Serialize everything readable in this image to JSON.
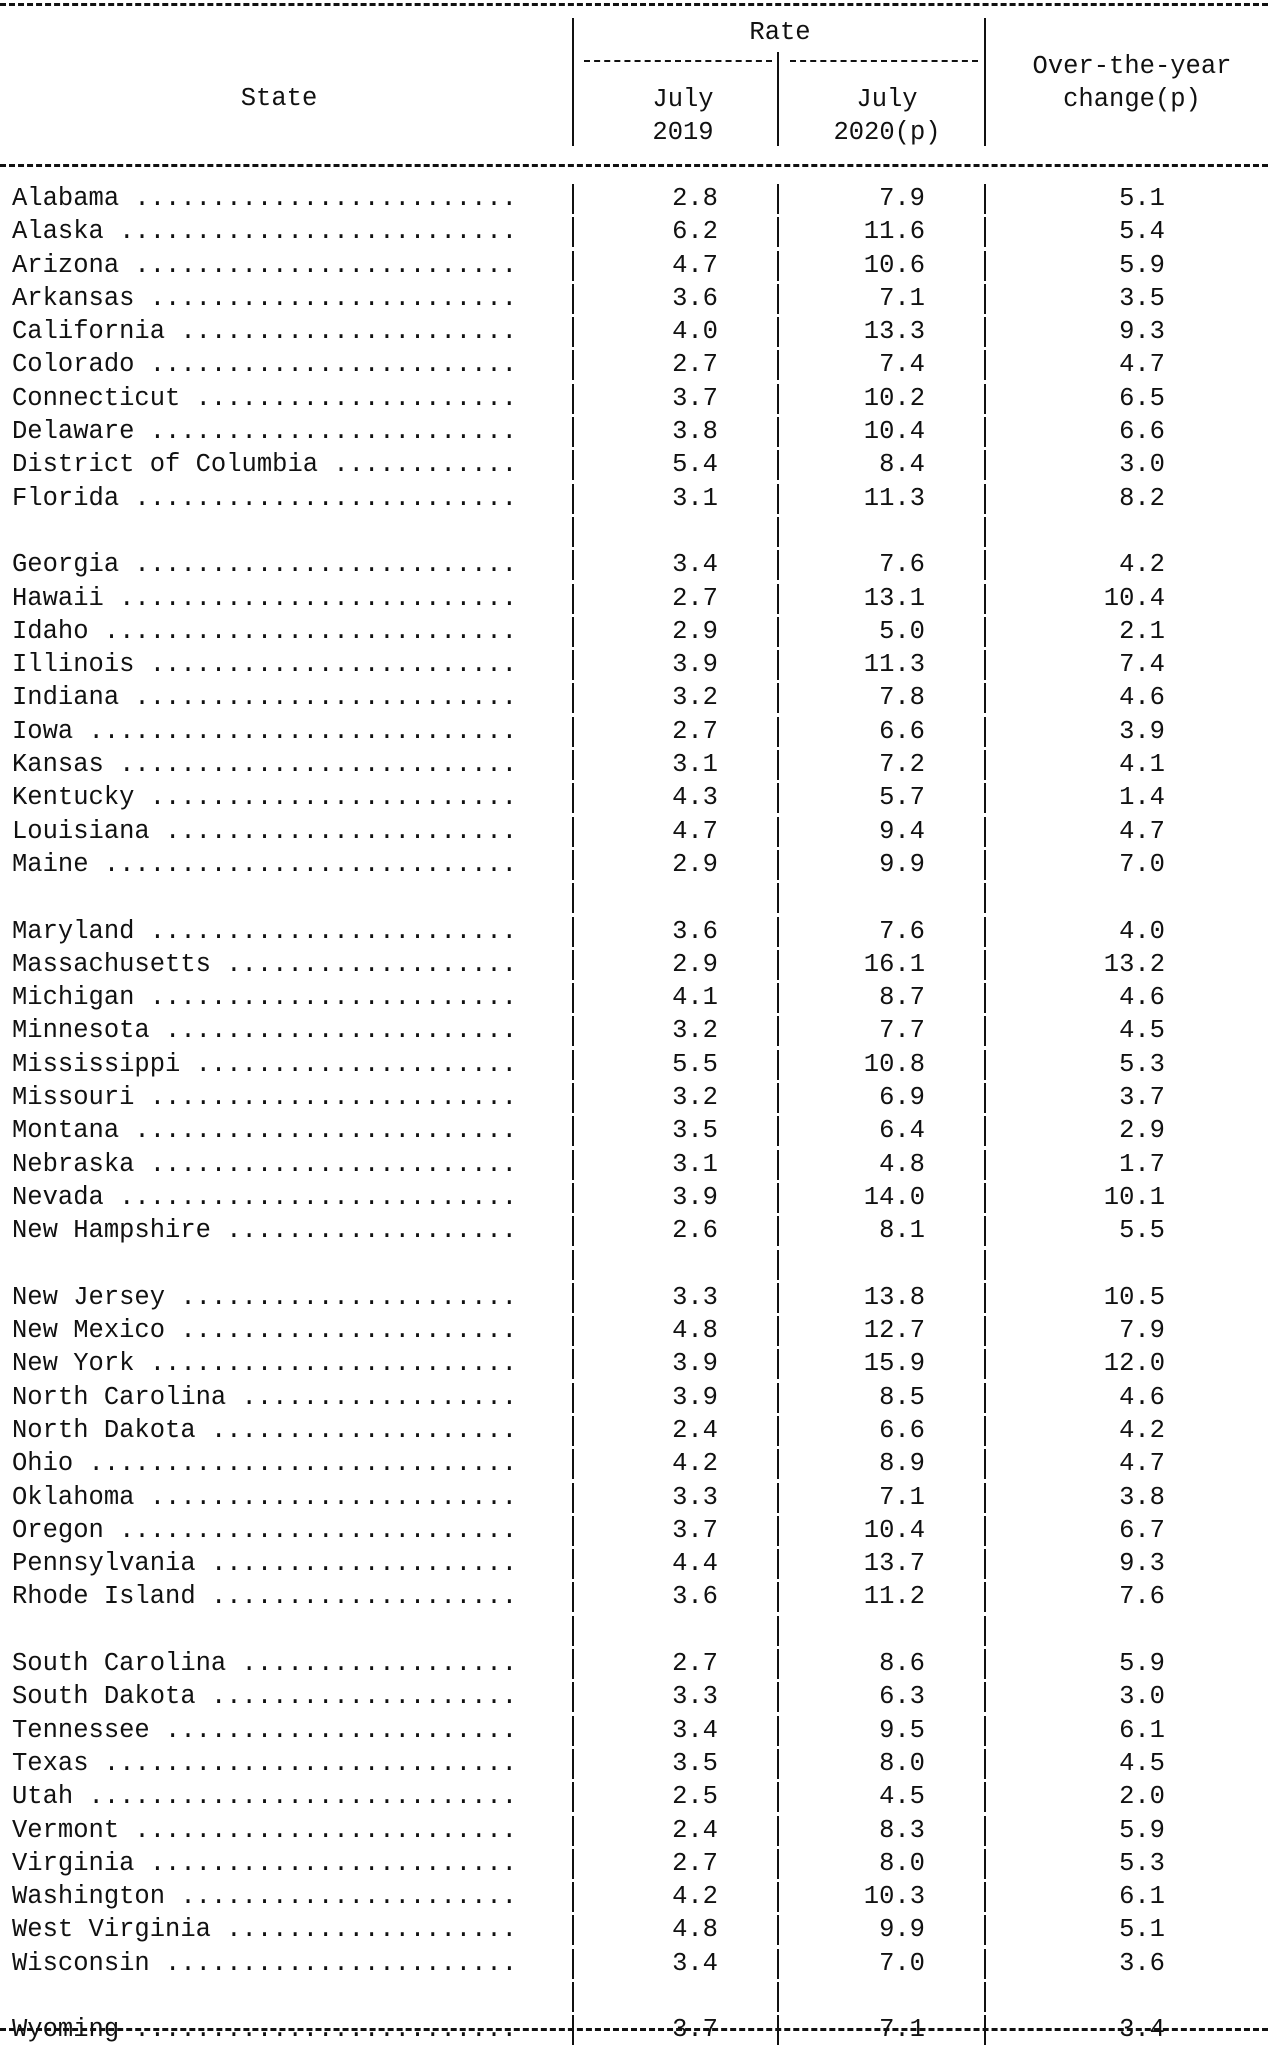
{
  "header": {
    "state": "State",
    "rate": "Rate",
    "july_2019": "July\n2019",
    "july_2020": "July\n2020(p)",
    "change": "Over-the-year\nchange(p)"
  },
  "rows": [
    [
      "Alabama",
      "2.8",
      "7.9",
      "5.1"
    ],
    [
      "Alaska",
      "6.2",
      "11.6",
      "5.4"
    ],
    [
      "Arizona",
      "4.7",
      "10.6",
      "5.9"
    ],
    [
      "Arkansas",
      "3.6",
      "7.1",
      "3.5"
    ],
    [
      "California",
      "4.0",
      "13.3",
      "9.3"
    ],
    [
      "Colorado",
      "2.7",
      "7.4",
      "4.7"
    ],
    [
      "Connecticut",
      "3.7",
      "10.2",
      "6.5"
    ],
    [
      "Delaware",
      "3.8",
      "10.4",
      "6.6"
    ],
    [
      "District of Columbia",
      "5.4",
      "8.4",
      "3.0"
    ],
    [
      "Florida",
      "3.1",
      "11.3",
      "8.2"
    ],
    [
      "Georgia",
      "3.4",
      "7.6",
      "4.2"
    ],
    [
      "Hawaii",
      "2.7",
      "13.1",
      "10.4"
    ],
    [
      "Idaho",
      "2.9",
      "5.0",
      "2.1"
    ],
    [
      "Illinois",
      "3.9",
      "11.3",
      "7.4"
    ],
    [
      "Indiana",
      "3.2",
      "7.8",
      "4.6"
    ],
    [
      "Iowa",
      "2.7",
      "6.6",
      "3.9"
    ],
    [
      "Kansas",
      "3.1",
      "7.2",
      "4.1"
    ],
    [
      "Kentucky",
      "4.3",
      "5.7",
      "1.4"
    ],
    [
      "Louisiana",
      "4.7",
      "9.4",
      "4.7"
    ],
    [
      "Maine",
      "2.9",
      "9.9",
      "7.0"
    ],
    [
      "Maryland",
      "3.6",
      "7.6",
      "4.0"
    ],
    [
      "Massachusetts",
      "2.9",
      "16.1",
      "13.2"
    ],
    [
      "Michigan",
      "4.1",
      "8.7",
      "4.6"
    ],
    [
      "Minnesota",
      "3.2",
      "7.7",
      "4.5"
    ],
    [
      "Mississippi",
      "5.5",
      "10.8",
      "5.3"
    ],
    [
      "Missouri",
      "3.2",
      "6.9",
      "3.7"
    ],
    [
      "Montana",
      "3.5",
      "6.4",
      "2.9"
    ],
    [
      "Nebraska",
      "3.1",
      "4.8",
      "1.7"
    ],
    [
      "Nevada",
      "3.9",
      "14.0",
      "10.1"
    ],
    [
      "New Hampshire",
      "2.6",
      "8.1",
      "5.5"
    ],
    [
      "New Jersey",
      "3.3",
      "13.8",
      "10.5"
    ],
    [
      "New Mexico",
      "4.8",
      "12.7",
      "7.9"
    ],
    [
      "New York",
      "3.9",
      "15.9",
      "12.0"
    ],
    [
      "North Carolina",
      "3.9",
      "8.5",
      "4.6"
    ],
    [
      "North Dakota",
      "2.4",
      "6.6",
      "4.2"
    ],
    [
      "Ohio",
      "4.2",
      "8.9",
      "4.7"
    ],
    [
      "Oklahoma",
      "3.3",
      "7.1",
      "3.8"
    ],
    [
      "Oregon",
      "3.7",
      "10.4",
      "6.7"
    ],
    [
      "Pennsylvania",
      "4.4",
      "13.7",
      "9.3"
    ],
    [
      "Rhode Island",
      "3.6",
      "11.2",
      "7.6"
    ],
    [
      "South Carolina",
      "2.7",
      "8.6",
      "5.9"
    ],
    [
      "South Dakota",
      "3.3",
      "6.3",
      "3.0"
    ],
    [
      "Tennessee",
      "3.4",
      "9.5",
      "6.1"
    ],
    [
      "Texas",
      "3.5",
      "8.0",
      "4.5"
    ],
    [
      "Utah",
      "2.5",
      "4.5",
      "2.0"
    ],
    [
      "Vermont",
      "2.4",
      "8.3",
      "5.9"
    ],
    [
      "Virginia",
      "2.7",
      "8.0",
      "5.3"
    ],
    [
      "Washington",
      "4.2",
      "10.3",
      "6.1"
    ],
    [
      "West Virginia",
      "4.8",
      "9.9",
      "5.1"
    ],
    [
      "Wisconsin",
      "3.4",
      "7.0",
      "3.6"
    ],
    [
      "Wyoming",
      "3.7",
      "7.1",
      "3.4"
    ]
  ]
}
